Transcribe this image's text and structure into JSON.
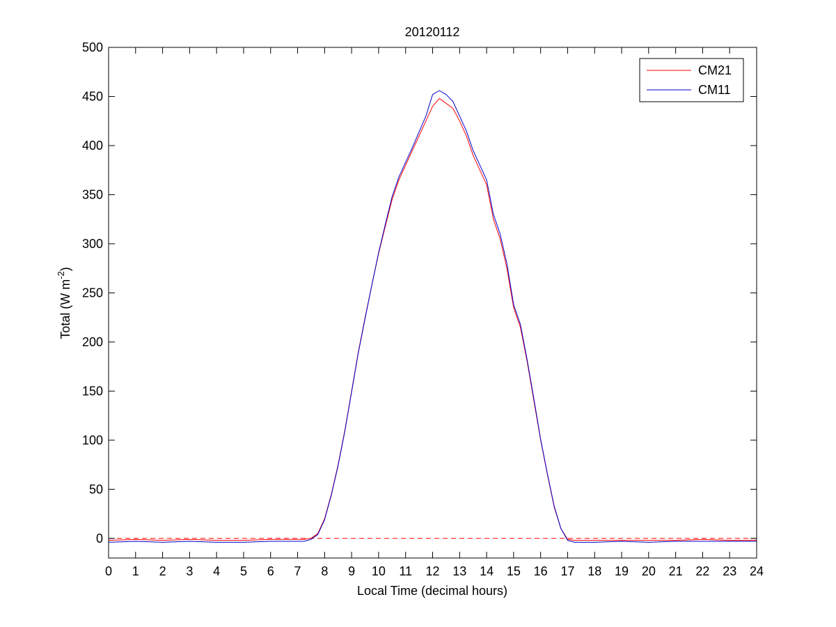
{
  "chart_data": {
    "type": "line",
    "title": "20120112",
    "xlabel": "Local Time (decimal hours)",
    "ylabel": {
      "main": "Total (W m",
      "superscript": "-2",
      "close": ")"
    },
    "xlim": [
      0,
      24
    ],
    "ylim": [
      -20,
      500
    ],
    "xticks": [
      0,
      1,
      2,
      3,
      4,
      5,
      6,
      7,
      8,
      9,
      10,
      11,
      12,
      13,
      14,
      15,
      16,
      17,
      18,
      19,
      20,
      21,
      22,
      23,
      24
    ],
    "yticks": [
      0,
      50,
      100,
      150,
      200,
      250,
      300,
      350,
      400,
      450,
      500
    ],
    "grid": false,
    "legend_position": "top-right",
    "reference_line": {
      "y": 0,
      "style": "dashed",
      "color": "#ff0000"
    },
    "series": [
      {
        "name": "CM21",
        "color": "#ff0000",
        "x": [
          0,
          1,
          2,
          3,
          4,
          5,
          6,
          7,
          7.25,
          7.5,
          7.75,
          8,
          8.25,
          8.5,
          8.75,
          9,
          9.25,
          9.5,
          9.75,
          10,
          10.25,
          10.5,
          10.75,
          11,
          11.25,
          11.5,
          11.75,
          12,
          12.25,
          12.5,
          12.75,
          13,
          13.25,
          13.5,
          13.75,
          14,
          14.25,
          14.5,
          14.75,
          15,
          15.25,
          15.5,
          15.75,
          16,
          16.25,
          16.5,
          16.75,
          17,
          17.25,
          17.5,
          18,
          19,
          20,
          21,
          22,
          23,
          24
        ],
        "y": [
          -2,
          -1,
          -2,
          -1,
          -2,
          -2,
          -1,
          -1,
          -1,
          0,
          5,
          20,
          45,
          75,
          110,
          150,
          190,
          225,
          258,
          290,
          318,
          345,
          365,
          380,
          395,
          410,
          425,
          440,
          448,
          443,
          438,
          425,
          410,
          390,
          375,
          360,
          325,
          305,
          275,
          235,
          215,
          180,
          140,
          100,
          65,
          32,
          10,
          -1,
          -2,
          -2,
          -2,
          -2,
          -2,
          -2,
          -1,
          -2,
          -2
        ]
      },
      {
        "name": "CM11",
        "color": "#0000cc",
        "x": [
          0,
          1,
          2,
          3,
          4,
          5,
          6,
          7,
          7.25,
          7.5,
          7.75,
          8,
          8.25,
          8.5,
          8.75,
          9,
          9.25,
          9.5,
          9.75,
          10,
          10.25,
          10.5,
          10.75,
          11,
          11.25,
          11.5,
          11.75,
          12,
          12.25,
          12.5,
          12.75,
          13,
          13.25,
          13.5,
          13.75,
          14,
          14.25,
          14.5,
          14.75,
          15,
          15.25,
          15.5,
          15.75,
          16,
          16.25,
          16.5,
          16.75,
          17,
          17.25,
          17.5,
          18,
          19,
          20,
          21,
          22,
          23,
          24
        ],
        "y": [
          -4,
          -3,
          -4,
          -3,
          -4,
          -4,
          -3,
          -3,
          -3,
          -1,
          4,
          19,
          44,
          74,
          109,
          149,
          189,
          224,
          258,
          291,
          320,
          348,
          368,
          383,
          398,
          414,
          430,
          452,
          456,
          452,
          445,
          430,
          415,
          395,
          380,
          365,
          330,
          310,
          280,
          238,
          218,
          182,
          142,
          101,
          66,
          33,
          10,
          -2,
          -4,
          -4,
          -4,
          -3,
          -4,
          -3,
          -3,
          -3,
          -3
        ]
      }
    ]
  }
}
